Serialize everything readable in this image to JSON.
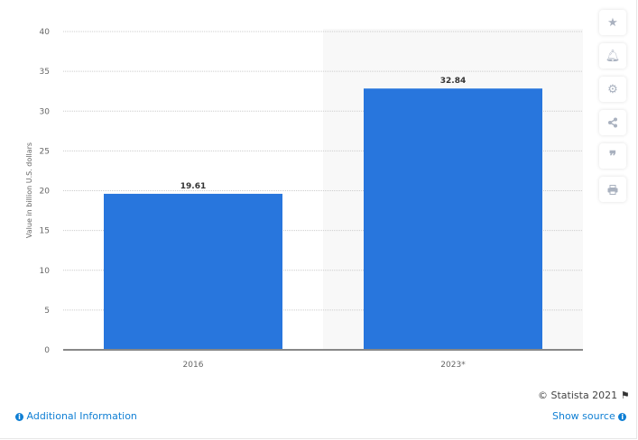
{
  "chart_data": {
    "type": "bar",
    "categories": [
      "2016",
      "2023*"
    ],
    "values": [
      19.61,
      32.84
    ],
    "data_labels": [
      "19.61",
      "32.84"
    ],
    "ylabel": "Value in billion U.S. dollars",
    "xlabel": "",
    "ylim": [
      0,
      40
    ],
    "yticks": [
      0,
      5,
      10,
      15,
      20,
      25,
      30,
      35,
      40
    ],
    "grid": true,
    "bar_color": "#2876dd",
    "highlighted_category": "2023*"
  },
  "footer": {
    "copyright": "© Statista 2021",
    "additional_info": "Additional Information",
    "show_source": "Show source"
  },
  "sidebar_icons": [
    "star-icon",
    "bell-icon",
    "gear-icon",
    "share-icon",
    "quote-icon",
    "print-icon"
  ]
}
